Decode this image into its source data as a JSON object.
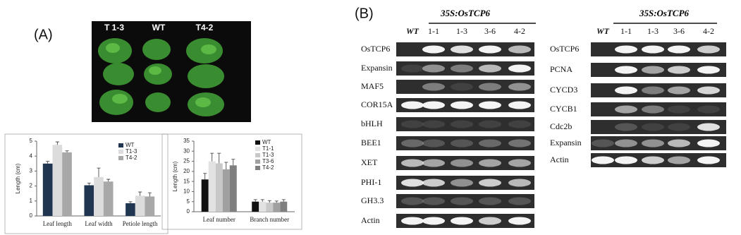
{
  "panel_labels": [
    "(A)",
    "(B)"
  ],
  "photo_labels": [
    "T 1-3",
    "WT",
    "T4-2"
  ],
  "chart_data": [
    {
      "type": "bar",
      "y_label": "Length (cm)",
      "categories": [
        "Leaf length",
        "Leaf width",
        "Petiole length"
      ],
      "series": [
        {
          "name": "WT",
          "color": "#1f3550",
          "values": [
            3.5,
            2.05,
            0.85
          ],
          "errors": [
            0.15,
            0.15,
            0.1
          ]
        },
        {
          "name": "T1-3",
          "color": "#dcdcdc",
          "values": [
            4.75,
            2.6,
            1.35
          ],
          "errors": [
            0.2,
            0.6,
            0.25
          ]
        },
        {
          "name": "T4-2",
          "color": "#a8a8a8",
          "values": [
            4.25,
            2.3,
            1.3
          ],
          "errors": [
            0.1,
            0.15,
            0.25
          ]
        }
      ],
      "ylim": [
        0,
        5
      ],
      "yticks": [
        0,
        1,
        2,
        3,
        4,
        5
      ],
      "legend": "upper right"
    },
    {
      "type": "bar",
      "y_label": "Length (cm)",
      "categories": [
        "Leaf number",
        "Branch number"
      ],
      "series": [
        {
          "name": "WT",
          "color": "#111111",
          "values": [
            16,
            5
          ],
          "errors": [
            3,
            1
          ]
        },
        {
          "name": "T1-1",
          "color": "#e2e2e2",
          "values": [
            25,
            5
          ],
          "errors": [
            4,
            1
          ]
        },
        {
          "name": "T1-3",
          "color": "#c8c8c8",
          "values": [
            24,
            4.5
          ],
          "errors": [
            5,
            1
          ]
        },
        {
          "name": "T3-6",
          "color": "#a0a0a0",
          "values": [
            21,
            4.5
          ],
          "errors": [
            3.5,
            0.8
          ]
        },
        {
          "name": "T4-2",
          "color": "#7f7f7f",
          "values": [
            23,
            5
          ],
          "errors": [
            3,
            1
          ]
        }
      ],
      "ylim": [
        0,
        35
      ],
      "yticks": [
        0,
        5,
        10,
        15,
        20,
        25,
        30,
        35
      ],
      "legend": "upper right"
    }
  ],
  "gels": [
    {
      "construct": "35S:OsTCP6",
      "lanes": [
        "WT",
        "1-1",
        "1-3",
        "3-6",
        "4-2"
      ],
      "genes": [
        "OsTCP6",
        "Expansin",
        "MAF5",
        "COR15A",
        "bHLH",
        "BEE1",
        "XET",
        "PHI-1",
        "GH3.3",
        "Actin"
      ]
    },
    {
      "construct": "35S:OsTCP6",
      "lanes": [
        "WT",
        "1-1",
        "1-3",
        "3-6",
        "4-2"
      ],
      "genes": [
        "OsTCP6",
        "PCNA",
        "CYCD3",
        "CYCB1",
        "Cdc2b",
        "Expansin",
        "Actin"
      ]
    }
  ]
}
